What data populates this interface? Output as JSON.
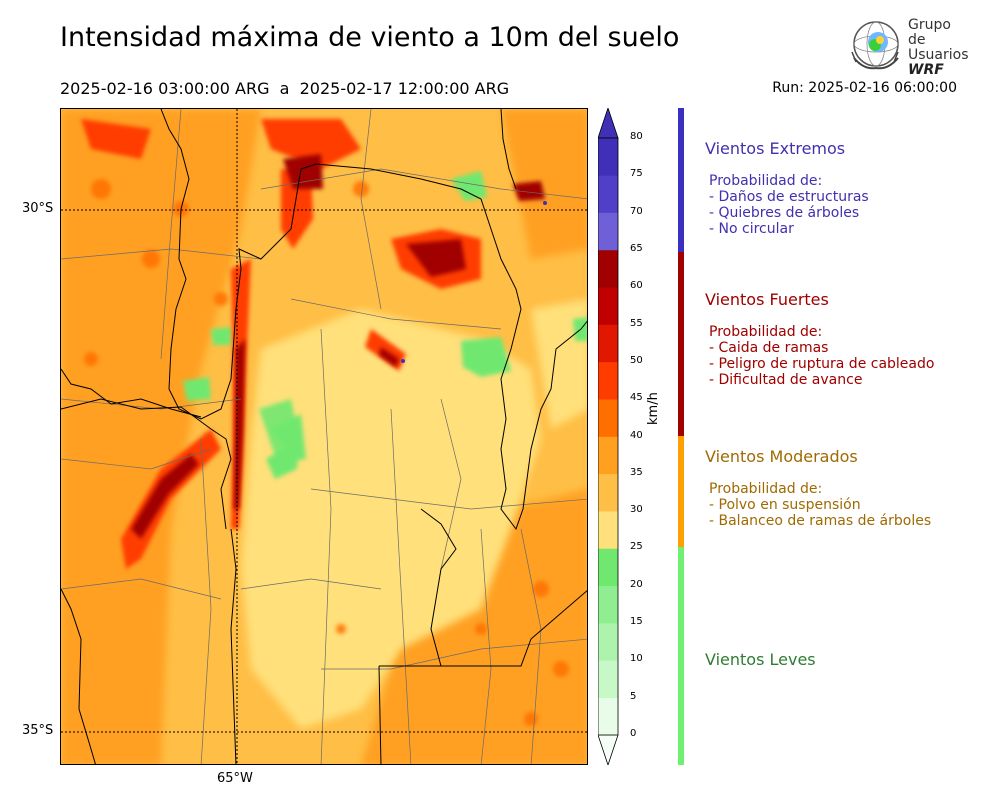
{
  "header": {
    "title": "Intensidad máxima de viento a 10m del suelo",
    "period": "2025-02-16 03:00:00 ARG  a  2025-02-17 12:00:00 ARG",
    "run": "Run: 2025-02-16 06:00:00"
  },
  "logo": {
    "line1": "Grupo de",
    "line2": "Usuarios",
    "line3": "WRF"
  },
  "map": {
    "lat_labels": [
      "30°S",
      "35°S"
    ],
    "lon_labels": [
      "65°W"
    ]
  },
  "colorbar": {
    "unit": "km/h",
    "ticks": [
      "0",
      "5",
      "10",
      "15",
      "20",
      "25",
      "30",
      "35",
      "40",
      "45",
      "50",
      "55",
      "60",
      "65",
      "70",
      "75",
      "80"
    ],
    "colors": [
      "#e8fce8",
      "#c8f7c8",
      "#adf2ad",
      "#8fee8f",
      "#70e870",
      "#ffe07a",
      "#ffbe45",
      "#ffa020",
      "#ff6f00",
      "#ff3c00",
      "#e01800",
      "#c00000",
      "#a00000",
      "#7060d8",
      "#5040c8",
      "#4030b8"
    ]
  },
  "categories": [
    {
      "title": "Vientos Extremos",
      "color": "#4030b0",
      "body": "Probabilidad de:\n- Daños de estructuras\n- Quiebres de árboles\n- No circular"
    },
    {
      "title": "Vientos Fuertes",
      "color": "#a00000",
      "body": "Probabilidad de:\n- Caida de ramas\n- Peligro de ruptura de cableado\n- Dificultad de avance"
    },
    {
      "title": "Vientos Moderados",
      "color": "#a06a00",
      "body": "Probabilidad de:\n- Polvo en suspensión\n- Balanceo de ramas de árboles"
    },
    {
      "title": "Vientos Leves",
      "color": "#2e7d32",
      "body": ""
    }
  ],
  "category_bar_colors": [
    "#3a2fc0",
    "#a00000",
    "#ffa000",
    "#70f070"
  ]
}
